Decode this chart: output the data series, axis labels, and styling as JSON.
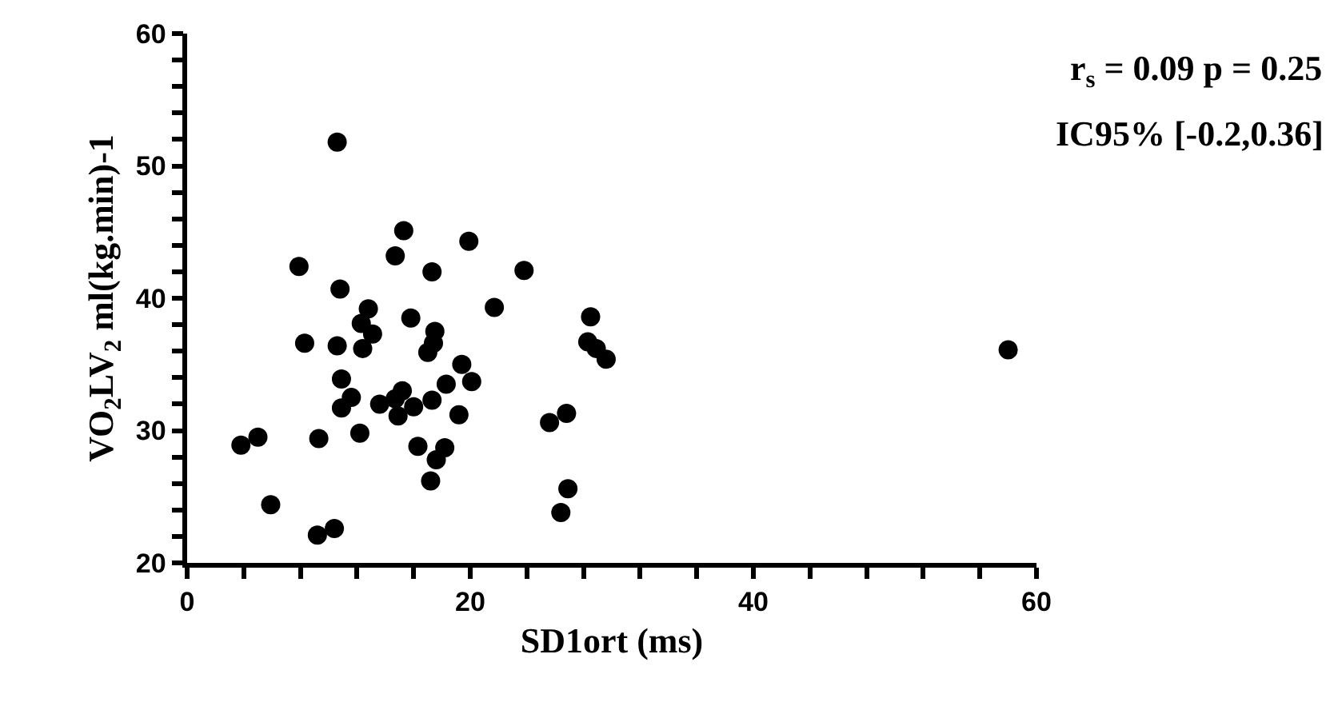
{
  "chart_data": {
    "type": "scatter",
    "xlabel": "SD1ort (ms)",
    "ylabel": "VO$_{2}$LV$_{2}$ ml(kg.min)-1",
    "annotations": [
      "r$_{s}$ = 0.09 p = 0.25",
      "IC95% [-0.2,0.36]"
    ],
    "x": [
      10.6,
      15.3,
      19.9,
      14.7,
      7.9,
      17.3,
      23.8,
      10.8,
      12.8,
      21.7,
      12.3,
      15.8,
      13.1,
      17.5,
      17.4,
      17.0,
      8.3,
      10.6,
      12.4,
      28.5,
      28.3,
      28.9,
      29.6,
      58.0,
      19.4,
      20.1,
      18.3,
      10.9,
      11.6,
      10.9,
      13.6,
      15.2,
      14.7,
      14.9,
      16.0,
      17.3,
      19.2,
      12.2,
      9.3,
      3.8,
      5.0,
      16.3,
      18.2,
      17.6,
      17.2,
      25.6,
      26.8,
      26.9,
      26.4,
      5.9,
      9.2,
      10.4
    ],
    "series": [
      {
        "color": "#000000",
        "values": [
          51.8,
          45.1,
          44.3,
          43.2,
          42.4,
          42.0,
          42.1,
          40.7,
          39.2,
          39.3,
          38.1,
          38.5,
          37.3,
          37.5,
          36.6,
          35.9,
          36.6,
          36.4,
          36.2,
          38.6,
          36.7,
          36.2,
          35.4,
          36.1,
          35.0,
          33.7,
          33.5,
          33.9,
          32.5,
          31.7,
          32.0,
          33.0,
          32.4,
          31.1,
          31.8,
          32.3,
          31.2,
          29.8,
          29.4,
          28.9,
          29.5,
          28.8,
          28.7,
          27.8,
          26.2,
          30.6,
          31.3,
          25.6,
          23.8,
          24.4,
          22.1,
          22.6
        ]
      }
    ],
    "marker": "circle",
    "xlim": [
      0,
      60
    ],
    "ylim": [
      20,
      60
    ],
    "xticks": [
      0,
      {
        "value": 4,
        "label": null
      },
      {
        "value": 8,
        "label": null
      },
      {
        "value": 12,
        "label": null
      },
      {
        "value": 16,
        "label": null
      },
      20,
      {
        "value": 24,
        "label": null
      },
      {
        "value": 28,
        "label": null
      },
      {
        "value": 32,
        "label": null
      },
      {
        "value": 36,
        "label": null
      },
      40,
      {
        "value": 44,
        "label": null
      },
      {
        "value": 48,
        "label": null
      },
      {
        "value": 52,
        "label": null
      },
      {
        "value": 56,
        "label": null
      },
      60
    ],
    "yticks": [
      20,
      {
        "value": 22,
        "label": null
      },
      {
        "value": 24,
        "label": null
      },
      {
        "value": 26,
        "label": null
      },
      {
        "value": 28,
        "label": null
      },
      30,
      {
        "value": 32,
        "label": null
      },
      {
        "value": 34,
        "label": null
      },
      {
        "value": 36,
        "label": null
      },
      {
        "value": 38,
        "label": null
      },
      40,
      {
        "value": 42,
        "label": null
      },
      {
        "value": 44,
        "label": null
      },
      {
        "value": 46,
        "label": null
      },
      {
        "value": 48,
        "label": null
      },
      50,
      {
        "value": 52,
        "label": null
      },
      {
        "value": 54,
        "label": null
      },
      {
        "value": 56,
        "label": null
      },
      {
        "value": 58,
        "label": null
      },
      60
    ]
  }
}
